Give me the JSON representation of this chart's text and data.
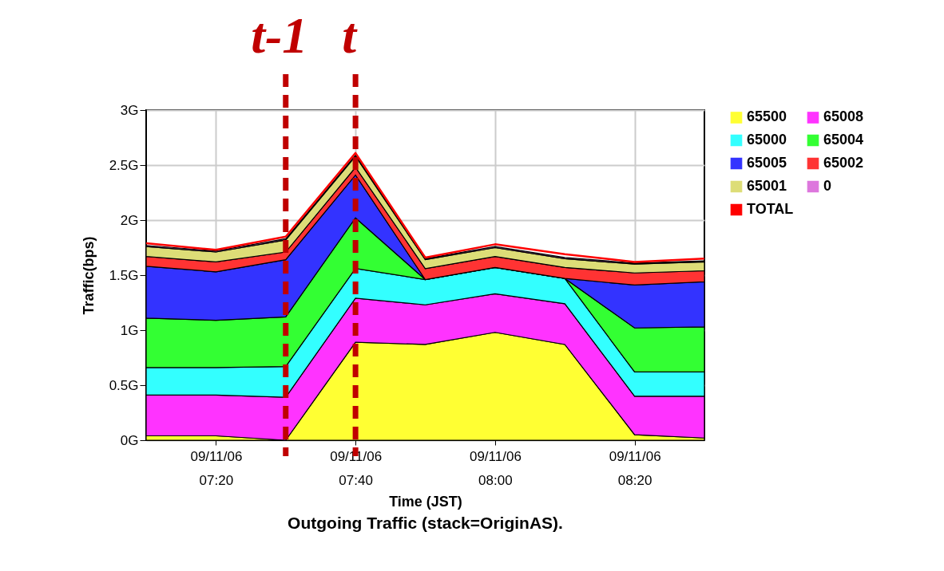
{
  "chart_data": {
    "type": "area",
    "stacked": true,
    "title": "Outgoing Traffic (stack=OriginAS).",
    "xlabel": "Time (JST)",
    "ylabel": "Traffic(bps)",
    "x": [
      "--09-11T07:10",
      "--09-11T07:20",
      "--09-11T07:30",
      "--09-11T07:40",
      "--09-11T07:50",
      "--09-11T08:00",
      "--09-11T08:10",
      "--09-11T08:20",
      "--09-11T08:30"
    ],
    "series": [
      {
        "name": "65500",
        "color": "#ffff33",
        "values": [
          0.04,
          0.04,
          0,
          0.89,
          0.87,
          0.98,
          0.87,
          0.05,
          0.02
        ]
      },
      {
        "name": "65008",
        "color": "#ff33ff",
        "values": [
          0.37,
          0.37,
          0.39,
          0.4,
          0.36,
          0.35,
          0.37,
          0.35,
          0.38
        ]
      },
      {
        "name": "65000",
        "color": "#33ffff",
        "values": [
          0.25,
          0.25,
          0.28,
          0.27,
          0.23,
          0.24,
          0.23,
          0.22,
          0.22
        ]
      },
      {
        "name": "65004",
        "color": "#33ff33",
        "values": [
          0.45,
          0.43,
          0.45,
          0.46,
          0,
          0,
          0,
          0.4,
          0.41
        ]
      },
      {
        "name": "65005",
        "color": "#3333ff",
        "values": [
          0.47,
          0.44,
          0.52,
          0.39,
          0,
          0,
          0,
          0.39,
          0.41
        ]
      },
      {
        "name": "65002",
        "color": "#ff3333",
        "values": [
          0.09,
          0.09,
          0.07,
          0.07,
          0.1,
          0.1,
          0.1,
          0.11,
          0.1
        ]
      },
      {
        "name": "65001",
        "color": "#dddd77",
        "values": [
          0.09,
          0.09,
          0.11,
          0.1,
          0.08,
          0.08,
          0.08,
          0.08,
          0.08
        ]
      },
      {
        "name": "0",
        "color": "#dd77dd",
        "values": [
          0.01,
          0.01,
          0.01,
          0.01,
          0.01,
          0.01,
          0.01,
          0.01,
          0.01
        ]
      },
      {
        "name": "TOTAL",
        "color": "#ff0000",
        "type": "line",
        "values": [
          1.79,
          1.73,
          1.85,
          2.61,
          1.66,
          1.78,
          1.69,
          1.62,
          1.65
        ]
      }
    ],
    "xlim": [
      "--09-11T07:10",
      "--09-11T08:30"
    ],
    "xticks": [
      {
        "value": "--09-11T07:20",
        "label": "09/11/06 07:20"
      },
      {
        "value": "--09-11T07:40",
        "label": "09/11/06 07:40"
      },
      {
        "value": "--09-11T08:00",
        "label": "09/11/06 08:00"
      },
      {
        "value": "--09-11T08:20",
        "label": "09/11/06 08:20"
      }
    ],
    "ylim": [
      0,
      3
    ],
    "yticks": [
      {
        "value": 0,
        "label": "0G"
      },
      {
        "value": 0.5,
        "label": "0.5G"
      },
      {
        "value": 1,
        "label": "1G"
      },
      {
        "value": 1.5,
        "label": "1.5G"
      },
      {
        "value": 2,
        "label": "2G"
      },
      {
        "value": 2.5,
        "label": "2.5G"
      },
      {
        "value": 3,
        "label": "3G"
      }
    ],
    "grid": true,
    "legend": "right",
    "ref_lines": [
      {
        "axis": "x",
        "value": "--09-11T07:30",
        "label": "t-1",
        "color": "#c00000",
        "line_style": "dashed"
      },
      {
        "axis": "x",
        "value": "--09-11T07:40",
        "label": "t",
        "color": "#c00000",
        "line_style": "dashed"
      }
    ]
  }
}
